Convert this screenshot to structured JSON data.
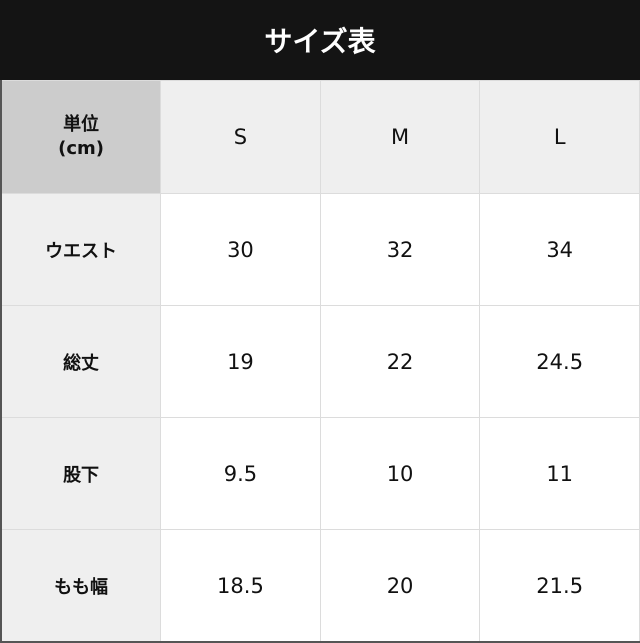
{
  "title": "サイズ表",
  "table": {
    "corner_line1": "単位",
    "corner_line2": "(cm)",
    "columns": [
      "S",
      "M",
      "L"
    ],
    "rows": [
      {
        "label": "ウエスト",
        "values": [
          "30",
          "32",
          "34"
        ]
      },
      {
        "label": "総丈",
        "values": [
          "19",
          "22",
          "24.5"
        ]
      },
      {
        "label": "股下",
        "values": [
          "9.5",
          "10",
          "11"
        ]
      },
      {
        "label": "もも幅",
        "values": [
          "18.5",
          "20",
          "21.5"
        ]
      }
    ]
  },
  "colors": {
    "title_bg": "#141414",
    "corner_bg": "#cccccc",
    "header_bg": "#efefef"
  }
}
